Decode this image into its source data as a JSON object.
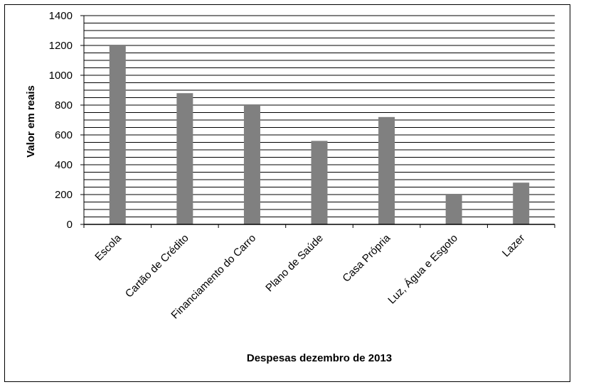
{
  "chart_data": {
    "type": "bar",
    "categories": [
      "Escola",
      "Cartão de Crédito",
      "Financiamento do Carro",
      "Plano de Saúde",
      "Casa Própria",
      "Luz, Água e Esgoto",
      "Lazer"
    ],
    "values": [
      1200,
      880,
      800,
      560,
      720,
      200,
      280
    ],
    "title": "",
    "xlabel": "Despesas dezembro de 2013",
    "ylabel": "Valor em reais",
    "ylim": [
      0,
      1400
    ],
    "yticks": [
      0,
      200,
      400,
      600,
      800,
      1000,
      1200,
      1400
    ],
    "ytick_labels": [
      "0",
      "200",
      "400",
      "600",
      "800",
      "1000",
      "1200",
      "1400"
    ],
    "minor_grid_step": 50,
    "grid": true,
    "legend": "none",
    "bar_color": "#808080",
    "grid_color": "#000000"
  }
}
